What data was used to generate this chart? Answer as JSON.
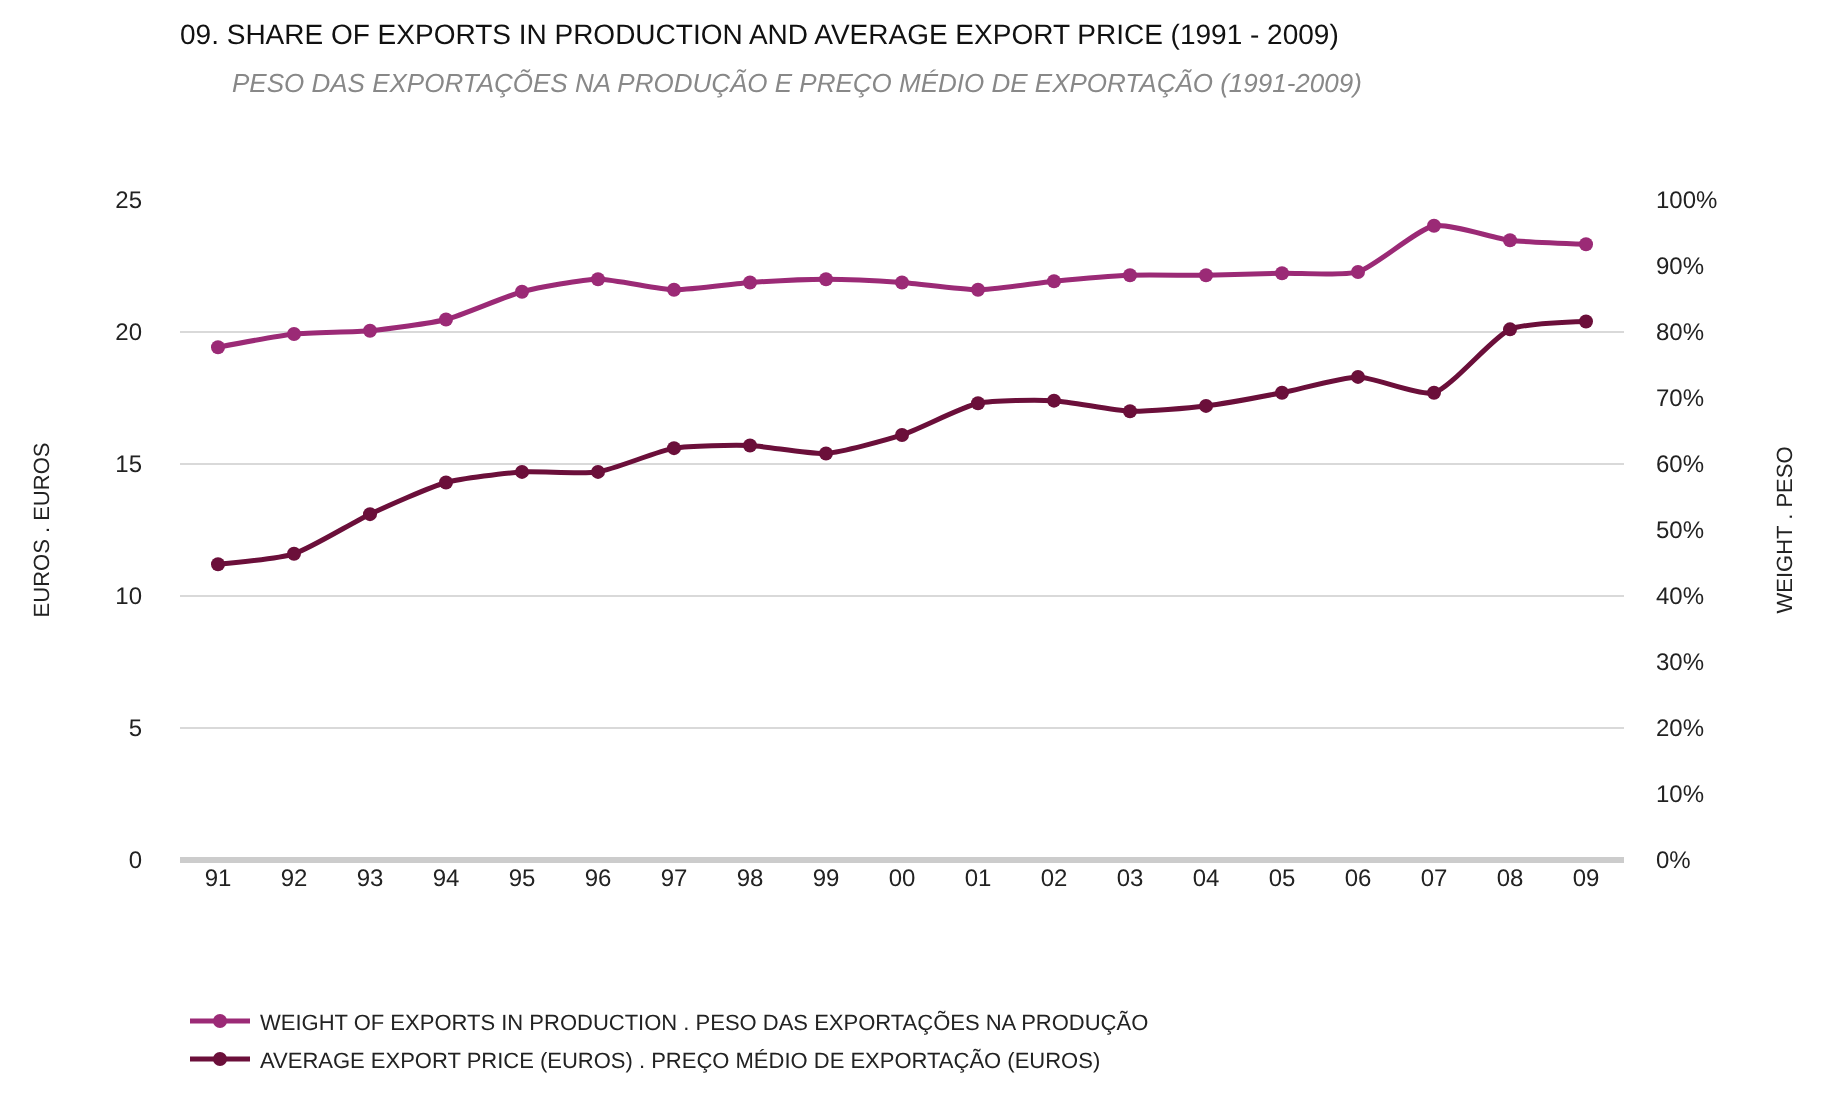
{
  "chart_data": {
    "type": "line",
    "title": "09. SHARE OF EXPORTS IN PRODUCTION AND AVERAGE EXPORT PRICE (1991 - 2009)",
    "subtitle": "PESO DAS EXPORTAÇÕES NA PRODUÇÃO E PREÇO MÉDIO DE EXPORTAÇÃO (1991-2009)",
    "ylabel": "EUROS . EUROS",
    "y2label": "WEIGHT . PESO",
    "categories": [
      "91",
      "92",
      "93",
      "94",
      "95",
      "96",
      "97",
      "98",
      "99",
      "00",
      "01",
      "02",
      "03",
      "04",
      "05",
      "06",
      "07",
      "08",
      "09"
    ],
    "series": [
      {
        "name": "WEIGHT OF EXPORTS IN PRODUCTION . PESO DAS EXPORTAÇÕES NA PRODUÇÃO",
        "color": "#9b2a76",
        "axis": "y2",
        "values": [
          77.7,
          79.7,
          80.2,
          81.9,
          86.1,
          88.0,
          86.4,
          87.5,
          88.0,
          87.5,
          86.4,
          87.7,
          88.6,
          88.6,
          88.9,
          89.1,
          96.1,
          93.9,
          93.3
        ]
      },
      {
        "name": "AVERAGE EXPORT PRICE (EUROS) . PREÇO MÉDIO DE EXPORTAÇÃO (EUROS)",
        "color": "#6b0f3a",
        "values": [
          11.2,
          11.6,
          13.1,
          14.3,
          14.7,
          14.7,
          15.6,
          15.7,
          15.4,
          16.1,
          17.3,
          17.4,
          17.0,
          17.2,
          17.7,
          18.3,
          17.7,
          20.1,
          20.4
        ]
      }
    ],
    "ylim": [
      0,
      25
    ],
    "yticks": [
      0,
      5,
      10,
      15,
      20,
      25
    ],
    "y2lim": [
      0,
      100
    ],
    "y2ticks": [
      {
        "value": 0,
        "label": "0%"
      },
      {
        "value": 10,
        "label": "10%"
      },
      {
        "value": 20,
        "label": "20%"
      },
      {
        "value": 30,
        "label": "30%"
      },
      {
        "value": 40,
        "label": "40%"
      },
      {
        "value": 50,
        "label": "50%"
      },
      {
        "value": 60,
        "label": "60%"
      },
      {
        "value": 70,
        "label": "70%"
      },
      {
        "value": 80,
        "label": "80%"
      },
      {
        "value": 90,
        "label": "90%"
      },
      {
        "value": 100,
        "label": "100%"
      }
    ],
    "grid": "y",
    "legend": "bottom left",
    "marker": "circle",
    "line_style": "solid"
  }
}
